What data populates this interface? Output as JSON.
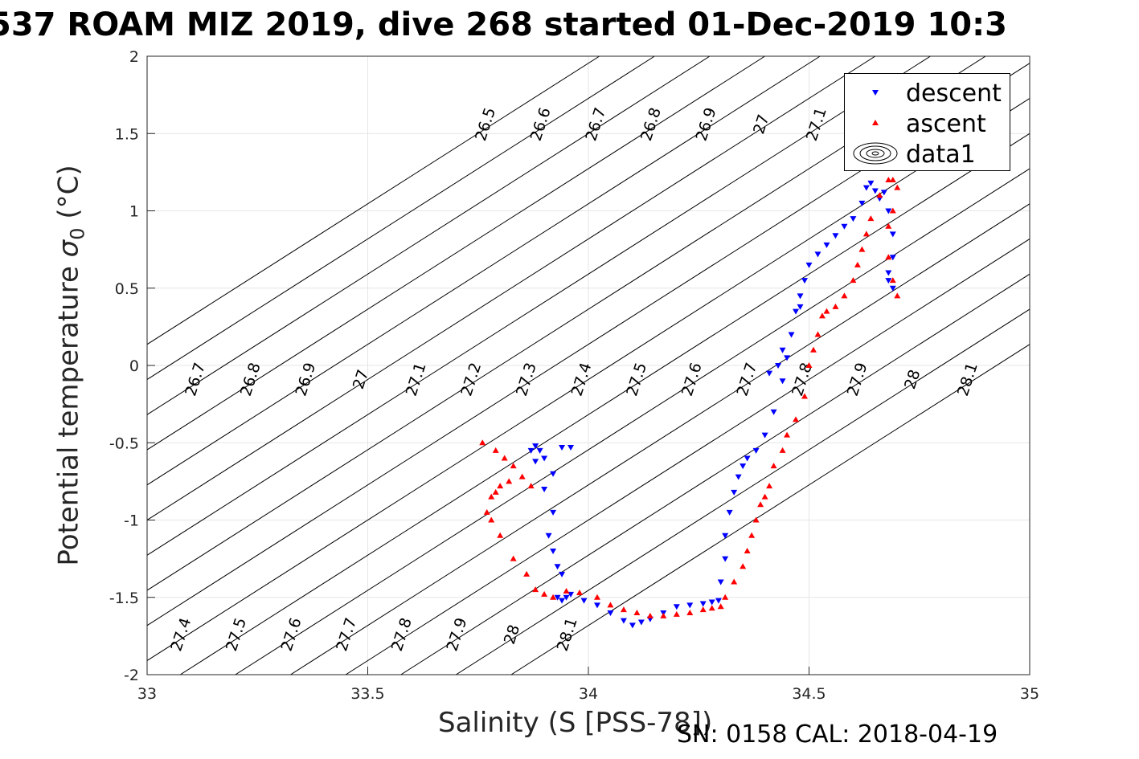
{
  "title": "537 ROAM MIZ 2019, dive 268 started 01-Dec-2019 10:3",
  "footer_note": "SN: 0158  CAL: 2018-04-19",
  "colors": {
    "descent": "#0000ff",
    "ascent": "#ff0000",
    "grid": "#e6e6e6",
    "contour": "#000000"
  },
  "chart_data": {
    "type": "scatter",
    "title": "537 ROAM MIZ 2019, dive 268 started 01-Dec-2019 10:3",
    "xlabel": "Salinity (S [PSS-78])",
    "ylabel": {
      "text": "Potential temperature ",
      "sigma": "σ",
      "sub": "0",
      "unit": " (°C)"
    },
    "xlim": [
      33,
      35
    ],
    "ylim": [
      -2,
      2
    ],
    "xticks": [
      "33",
      "33.5",
      "34",
      "34.5",
      "35"
    ],
    "yticks": [
      "2",
      "1.5",
      "1",
      "0.5",
      "0",
      "-0.5",
      "-1",
      "-1.5",
      "-2"
    ],
    "grid": true,
    "legend_position": "top-right",
    "legend": [
      "descent",
      "ascent",
      "data1"
    ],
    "contour_levels": [
      "26.5",
      "26.6",
      "26.7",
      "26.8",
      "26.9",
      "27",
      "27.1",
      "27.2",
      "27.3",
      "27.4",
      "27.5",
      "27.6",
      "27.7",
      "27.8",
      "27.9",
      "28",
      "28.1"
    ],
    "series": [
      {
        "name": "descent",
        "marker": "triangle-down",
        "x": [
          33.88,
          33.89,
          33.9,
          33.92,
          33.94,
          33.96,
          33.87,
          33.88,
          33.9,
          33.92,
          33.91,
          33.92,
          33.93,
          33.94,
          33.93,
          33.94,
          33.95,
          33.96,
          33.99,
          34.02,
          34.05,
          34.08,
          34.1,
          34.12,
          34.14,
          34.17,
          34.2,
          34.23,
          34.26,
          34.28,
          34.295,
          34.3,
          34.31,
          34.31,
          34.32,
          34.33,
          34.34,
          34.35,
          34.36,
          34.38,
          34.4,
          34.42,
          34.44,
          34.45,
          34.43,
          34.41,
          34.44,
          34.46,
          34.47,
          34.48,
          34.48,
          34.49,
          34.5,
          34.52,
          34.54,
          34.56,
          34.58,
          34.6,
          34.62,
          34.63,
          34.64,
          34.65,
          34.66,
          34.67,
          34.68,
          34.69,
          34.69,
          34.68,
          34.68,
          34.69
        ],
        "y": [
          -0.52,
          -0.55,
          -0.6,
          -0.7,
          -0.53,
          -0.53,
          -0.55,
          -0.62,
          -0.8,
          -0.95,
          -1.1,
          -1.2,
          -1.3,
          -1.35,
          -1.5,
          -1.52,
          -1.5,
          -1.48,
          -1.52,
          -1.55,
          -1.6,
          -1.65,
          -1.68,
          -1.66,
          -1.64,
          -1.6,
          -1.56,
          -1.55,
          -1.54,
          -1.53,
          -1.52,
          -1.4,
          -1.25,
          -1.1,
          -0.95,
          -0.82,
          -0.72,
          -0.65,
          -0.6,
          -0.55,
          -0.45,
          -0.3,
          -0.1,
          0.05,
          0.0,
          -0.05,
          0.1,
          0.2,
          0.35,
          0.38,
          0.45,
          0.55,
          0.65,
          0.72,
          0.78,
          0.84,
          0.9,
          0.95,
          1.05,
          1.15,
          1.18,
          1.13,
          1.08,
          1.12,
          1.0,
          0.85,
          0.7,
          0.6,
          0.55,
          0.5
        ]
      },
      {
        "name": "ascent",
        "marker": "triangle-up",
        "x": [
          33.76,
          33.79,
          33.81,
          33.83,
          33.85,
          33.87,
          33.82,
          33.8,
          33.79,
          33.78,
          33.77,
          33.78,
          33.8,
          33.83,
          33.86,
          33.88,
          33.9,
          33.92,
          33.95,
          33.98,
          34.02,
          34.05,
          34.08,
          34.11,
          34.14,
          34.17,
          34.2,
          34.23,
          34.26,
          34.28,
          34.3,
          34.31,
          34.33,
          34.35,
          34.36,
          34.37,
          34.38,
          34.39,
          34.4,
          34.41,
          34.42,
          34.44,
          34.45,
          34.47,
          34.49,
          34.5,
          34.51,
          34.52,
          34.53,
          34.54,
          34.56,
          34.58,
          34.6,
          34.61,
          34.62,
          34.63,
          34.64,
          34.66,
          34.68,
          34.69,
          34.7,
          34.69,
          34.68,
          34.68,
          34.69,
          34.7
        ],
        "y": [
          -0.5,
          -0.55,
          -0.6,
          -0.65,
          -0.72,
          -0.78,
          -0.75,
          -0.78,
          -0.82,
          -0.85,
          -0.95,
          -1.0,
          -1.1,
          -1.25,
          -1.35,
          -1.45,
          -1.48,
          -1.5,
          -1.46,
          -1.47,
          -1.5,
          -1.55,
          -1.58,
          -1.6,
          -1.62,
          -1.62,
          -1.61,
          -1.6,
          -1.58,
          -1.57,
          -1.56,
          -1.5,
          -1.4,
          -1.3,
          -1.2,
          -1.1,
          -1.0,
          -0.9,
          -0.85,
          -0.78,
          -0.65,
          -0.55,
          -0.45,
          -0.35,
          -0.2,
          0.0,
          0.1,
          0.2,
          0.32,
          0.35,
          0.38,
          0.45,
          0.55,
          0.65,
          0.75,
          0.85,
          0.95,
          1.1,
          1.2,
          1.2,
          1.15,
          1.0,
          0.9,
          0.7,
          0.55,
          0.45
        ]
      },
      {
        "name": "data1",
        "marker": "contour"
      }
    ]
  }
}
